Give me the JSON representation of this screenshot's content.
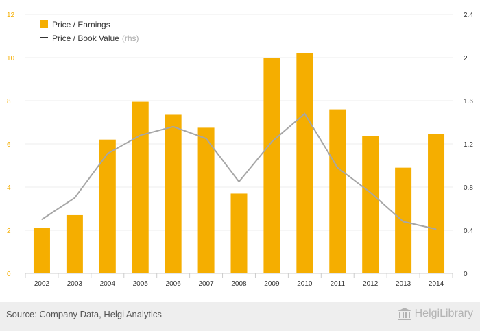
{
  "chart_data": {
    "type": "bar+line",
    "categories": [
      "2002",
      "2003",
      "2004",
      "2005",
      "2006",
      "2007",
      "2008",
      "2009",
      "2010",
      "2011",
      "2012",
      "2013",
      "2014"
    ],
    "series": [
      {
        "name": "Price / Earnings",
        "type": "bar",
        "axis": "left",
        "color": "#f5ae00",
        "values": [
          2.1,
          2.7,
          6.2,
          7.95,
          7.35,
          6.75,
          3.7,
          10.0,
          10.2,
          7.6,
          6.35,
          4.9,
          6.45
        ]
      },
      {
        "name": "Price / Book Value",
        "name_suffix": "(rhs)",
        "type": "line",
        "axis": "right",
        "color": "#a6a6a6",
        "values": [
          0.5,
          0.7,
          1.11,
          1.28,
          1.36,
          1.25,
          0.85,
          1.22,
          1.48,
          0.98,
          0.75,
          0.48,
          0.41
        ]
      }
    ],
    "y_left": {
      "min": 0,
      "max": 12,
      "ticks": [
        "0",
        "2",
        "4",
        "6",
        "8",
        "10",
        "12"
      ],
      "color": "#f5ae00"
    },
    "y_right": {
      "min": 0,
      "max": 2.4,
      "ticks": [
        "0",
        "0.4",
        "0.8",
        "1.2",
        "1.6",
        "2",
        "2.4"
      ],
      "color": "#333333"
    },
    "grid": true,
    "legend_position": "top-left"
  },
  "footer": {
    "source": "Source: Company Data, Helgi Analytics",
    "logo_text": "HelgiLibrary"
  }
}
